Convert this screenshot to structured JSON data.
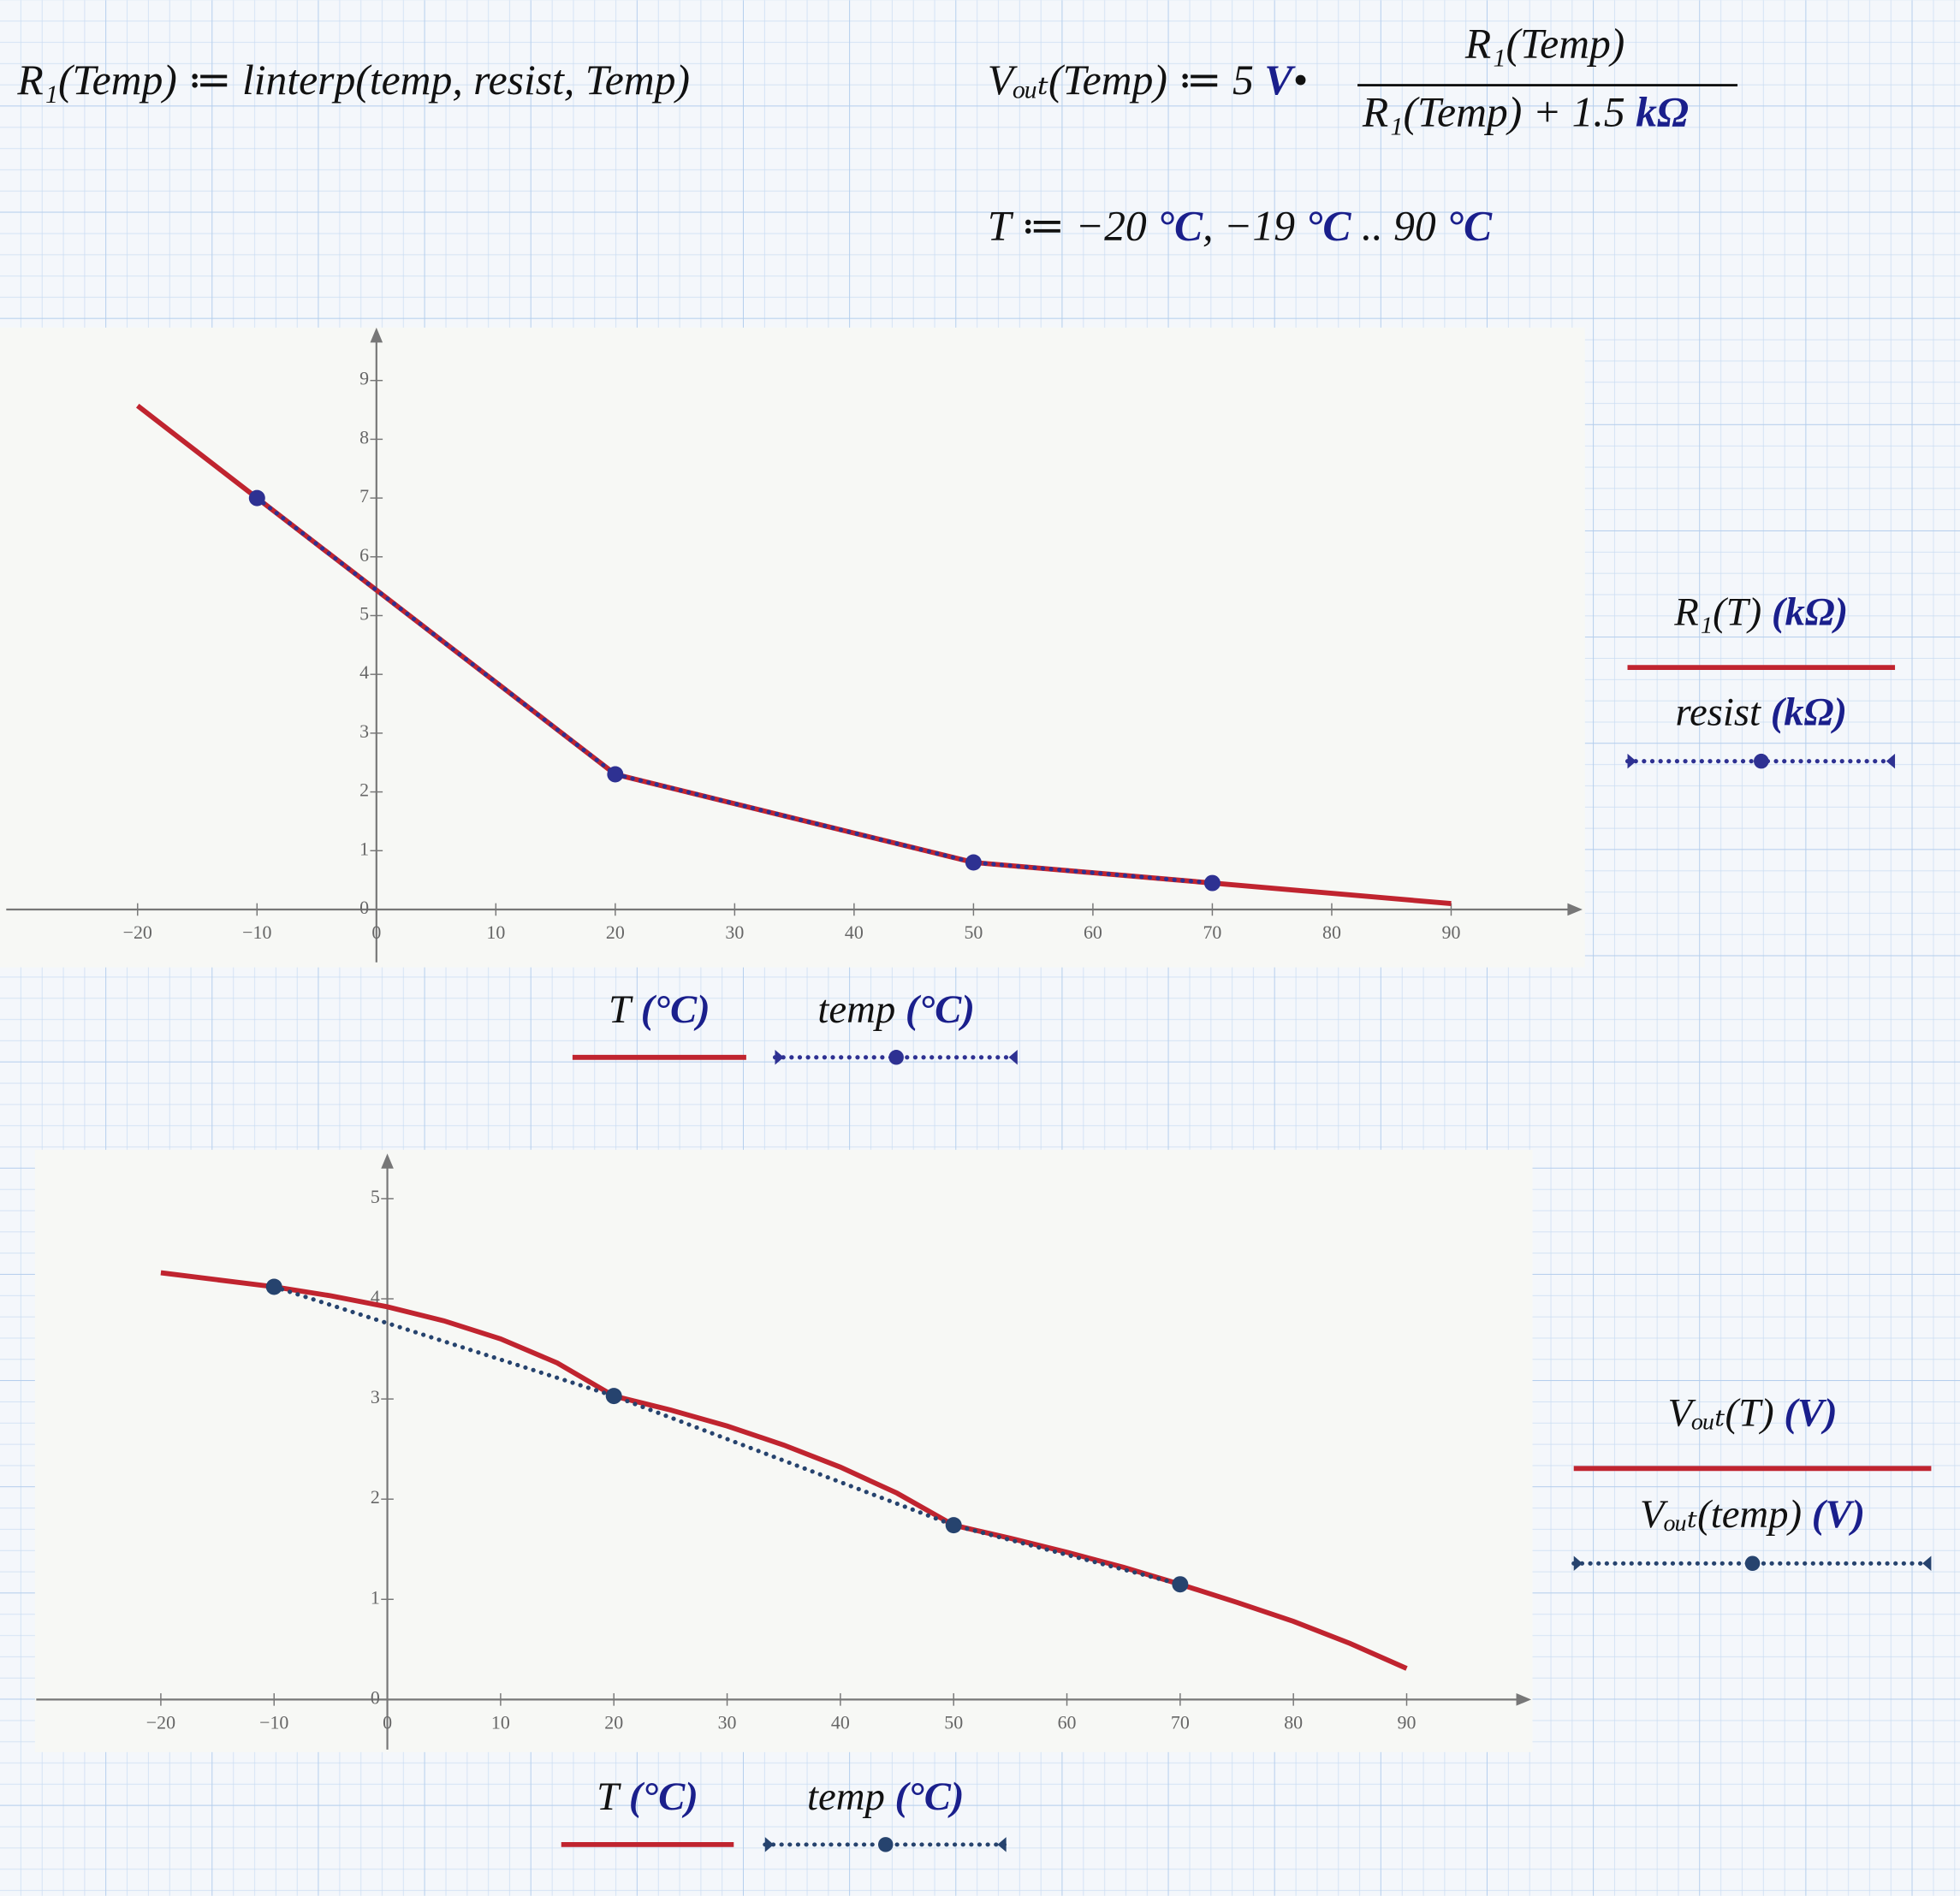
{
  "formulas": {
    "r1": "R₁(Temp) ≔ linterp(temp, resist, Temp)",
    "vout_lhs": "Vₒᵤₜ(Temp) ≔ 5",
    "vout_unit": "V",
    "vout_dot": "•",
    "vout_numerator": "R₁(Temp)",
    "vout_denominator": "R₁(Temp) + 1.5",
    "vout_denominator_unit": "kΩ",
    "range_parts": [
      "T ≔ −20",
      "°C",
      ", −19",
      "°C",
      " .. 90",
      "°C"
    ]
  },
  "chart_data": [
    {
      "type": "line",
      "xlim": [
        -31,
        101
      ],
      "ylim": [
        -0.9,
        9.9
      ],
      "xticks": [
        {
          "value": -20,
          "label": "−20"
        },
        {
          "value": -10,
          "label": "−10"
        },
        0,
        10,
        20,
        30,
        40,
        50,
        60,
        70,
        80,
        90
      ],
      "yticks": [
        0,
        1,
        2,
        3,
        4,
        5,
        6,
        7,
        8,
        9
      ],
      "series": [
        {
          "name": "R₁(T)",
          "unit": "(kΩ)",
          "color": "#c0242f",
          "style": "solid",
          "markers": false,
          "x": [
            -20,
            -10,
            20,
            50,
            70,
            90
          ],
          "values": [
            8.57,
            7,
            2.3,
            0.8,
            0.45,
            0.1
          ]
        },
        {
          "name": "resist",
          "unit": "(kΩ)",
          "color": "#2e3192",
          "style": "dotted",
          "markers": true,
          "x": [
            -10,
            20,
            50,
            70
          ],
          "values": [
            7,
            2.3,
            0.8,
            0.45
          ]
        }
      ],
      "x_legend": [
        {
          "name": "T",
          "unit": "(°C)"
        },
        {
          "name": "temp",
          "unit": "(°C)"
        }
      ]
    },
    {
      "type": "line",
      "xlim": [
        -31,
        101
      ],
      "ylim": [
        -0.5,
        5.45
      ],
      "xticks": [
        {
          "value": -20,
          "label": "−20"
        },
        {
          "value": -10,
          "label": "−10"
        },
        0,
        10,
        20,
        30,
        40,
        50,
        60,
        70,
        80,
        90
      ],
      "yticks": [
        0,
        1,
        2,
        3,
        4,
        5
      ],
      "series": [
        {
          "name": "Vₒᵤₜ(T)",
          "unit": "(V)",
          "color": "#c0242f",
          "style": "solid",
          "markers": false,
          "x": [
            -20,
            -15,
            -10,
            -5,
            0,
            5,
            10,
            15,
            20,
            25,
            30,
            35,
            40,
            45,
            50,
            55,
            60,
            65,
            70,
            75,
            80,
            85,
            90
          ],
          "values": [
            4.26,
            4.19,
            4.12,
            4.03,
            3.92,
            3.78,
            3.6,
            3.36,
            3.03,
            2.89,
            2.73,
            2.54,
            2.32,
            2.06,
            1.74,
            1.61,
            1.47,
            1.32,
            1.15,
            0.97,
            0.78,
            0.56,
            0.31
          ]
        },
        {
          "name": "Vₒᵤₜ(temp)",
          "unit": "(V)",
          "color": "#26436e",
          "style": "dotted",
          "markers": true,
          "x": [
            -10,
            20,
            50,
            70
          ],
          "values": [
            4.12,
            3.03,
            1.74,
            1.15
          ]
        }
      ],
      "x_legend": [
        {
          "name": "T",
          "unit": "(°C)"
        },
        {
          "name": "temp",
          "unit": "(°C)"
        }
      ]
    }
  ]
}
